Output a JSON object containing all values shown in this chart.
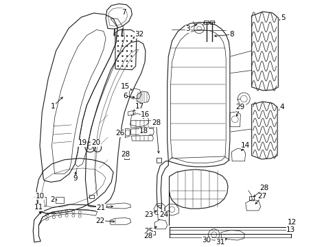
{
  "bg_color": "#ffffff",
  "line_color": "#1a1a1a",
  "fig_width": 4.89,
  "fig_height": 3.6,
  "dpi": 100,
  "label_fontsize": 7.5,
  "lw_main": 1.0,
  "lw_thin": 0.5,
  "lw_detail": 0.4
}
